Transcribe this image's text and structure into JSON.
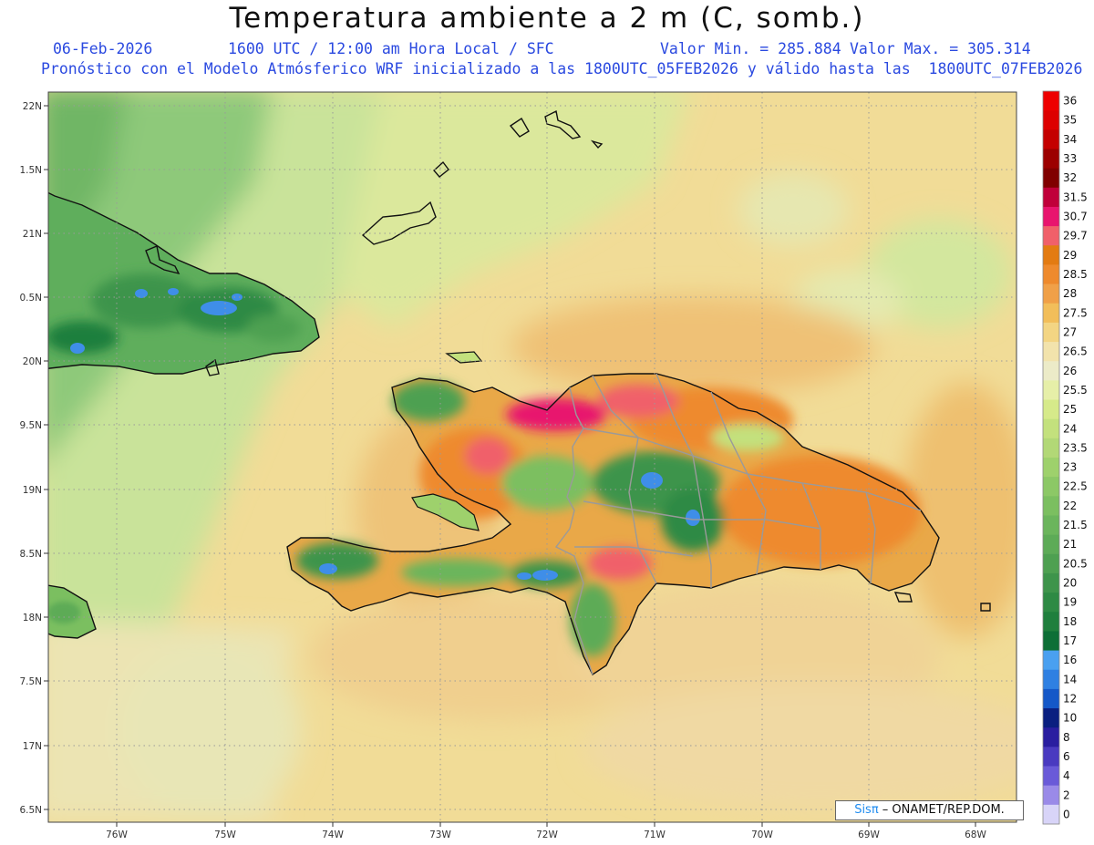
{
  "header": {
    "title": "Temperatura ambiente a 2 m (C, somb.)",
    "date": "06-Feb-2026",
    "time_info": "1600 UTC / 12:00 am Hora Local / SFC",
    "min_label": "Valor Min. = 285.884",
    "max_label": "Valor Max. = 305.314",
    "model_info": "Pronóstico con el Modelo Atmósferico WRF inicializado a las 1800UTC_05FEB2026 y válido hasta las  1800UTC_07FEB2026"
  },
  "map": {
    "lat_labels": [
      "22N",
      "1.5N",
      "21N",
      "0.5N",
      "20N",
      "9.5N",
      "19N",
      "8.5N",
      "18N",
      "7.5N",
      "17N",
      "6.5N"
    ],
    "lon_labels": [
      "76W",
      "75W",
      "74W",
      "73W",
      "72W",
      "71W",
      "70W",
      "69W",
      "68W"
    ]
  },
  "colorbar": {
    "labels": [
      "36",
      "35",
      "34",
      "33",
      "32",
      "31.5",
      "30.7",
      "29.7",
      "29",
      "28.5",
      "28",
      "27.5",
      "27",
      "26.5",
      "26",
      "25.5",
      "25",
      "24",
      "23.5",
      "23",
      "22.5",
      "22",
      "21.5",
      "21",
      "20.5",
      "20",
      "19",
      "18",
      "17",
      "16",
      "14",
      "12",
      "10",
      "8",
      "6",
      "4",
      "2",
      "0"
    ],
    "colors": [
      "#ee0000",
      "#dd0000",
      "#c40000",
      "#9c0000",
      "#800000",
      "#c0003a",
      "#e8156e",
      "#f0606a",
      "#e37b12",
      "#ee8a2d",
      "#f0a048",
      "#f2be5a",
      "#f3d583",
      "#f2e3ac",
      "#ecebc8",
      "#e6efa8",
      "#d6ea8a",
      "#c3e17d",
      "#b2d876",
      "#9ed16c",
      "#8cc866",
      "#7bbf60",
      "#6bb55c",
      "#5dab57",
      "#4ea051",
      "#3e944b",
      "#2e8a44",
      "#1f7f3d",
      "#0d6f36",
      "#4aa0f0",
      "#2f80e2",
      "#1558c8",
      "#0a1f80",
      "#2a1ea0",
      "#4a3ac0",
      "#6a5ad8",
      "#9a8ae8",
      "#d8d4f8"
    ]
  },
  "credit": {
    "brand": "Sisπ",
    "text": " – ONAMET/REP.DOM."
  }
}
